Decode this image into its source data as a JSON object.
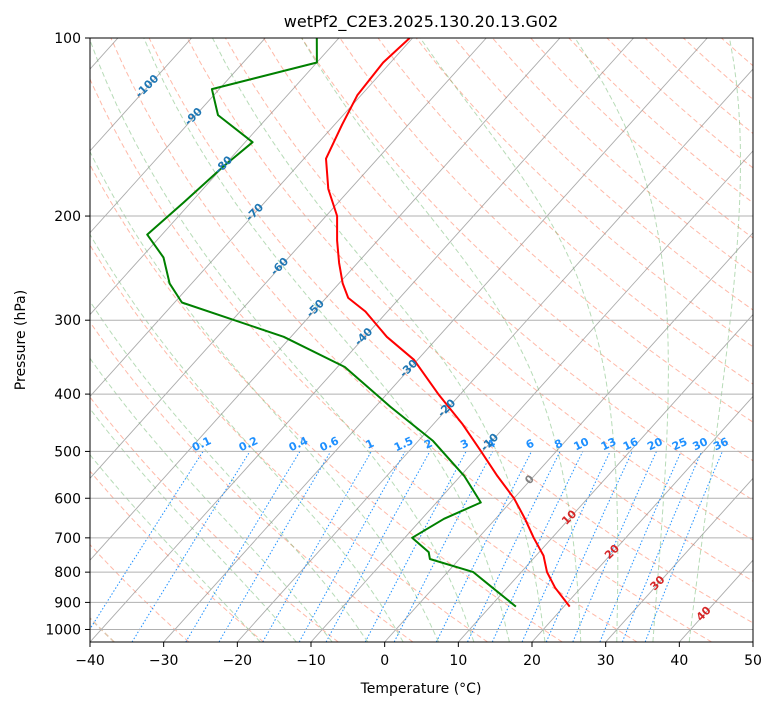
{
  "chart_data": {
    "type": "line",
    "chart_kind": "skew-T log-p diagram",
    "title": "wetPf2_C2E3.2025.130.20.13.G02",
    "xlabel": "Temperature (°C)",
    "ylabel": "Pressure (hPa)",
    "xlim": [
      -40,
      50
    ],
    "ylim": [
      1050,
      100
    ],
    "y_scale": "log",
    "x_ticks": [
      "−40",
      "−30",
      "−20",
      "−10",
      "0",
      "10",
      "20",
      "30",
      "40",
      "50"
    ],
    "y_ticks": [
      100,
      200,
      300,
      400,
      500,
      600,
      700,
      800,
      900,
      1000
    ],
    "grid": true,
    "colors": {
      "temperature": "#ff0000",
      "dewpoint": "#008000",
      "isotherm": "#888888",
      "dry_adiabat": "#ff8060",
      "moist_adiabat": "#60b060",
      "mixing_ratio": "#1e90ff",
      "isotherm_label_blue": "#1f77b4",
      "isotherm_label_red": "#d62728"
    },
    "series": [
      {
        "key": "temperature",
        "points": [
          {
            "p": 100,
            "t": -70.4
          },
          {
            "p": 110,
            "t": -71.0
          },
          {
            "p": 125,
            "t": -70.5
          },
          {
            "p": 140,
            "t": -69.0
          },
          {
            "p": 160,
            "t": -67.0
          },
          {
            "p": 180,
            "t": -63.0
          },
          {
            "p": 200,
            "t": -58.5
          },
          {
            "p": 220,
            "t": -55.5
          },
          {
            "p": 240,
            "t": -52.5
          },
          {
            "p": 260,
            "t": -49.5
          },
          {
            "p": 275,
            "t": -47.0
          },
          {
            "p": 290,
            "t": -43.0
          },
          {
            "p": 320,
            "t": -37.0
          },
          {
            "p": 350,
            "t": -30.5
          },
          {
            "p": 400,
            "t": -23.0
          },
          {
            "p": 450,
            "t": -16.0
          },
          {
            "p": 500,
            "t": -10.2
          },
          {
            "p": 550,
            "t": -5.0
          },
          {
            "p": 600,
            "t": 0.0
          },
          {
            "p": 650,
            "t": 4.0
          },
          {
            "p": 700,
            "t": 7.5
          },
          {
            "p": 750,
            "t": 11.0
          },
          {
            "p": 800,
            "t": 13.5
          },
          {
            "p": 850,
            "t": 16.5
          },
          {
            "p": 915,
            "t": 20.8
          }
        ]
      },
      {
        "key": "dewpoint",
        "points": [
          {
            "p": 100,
            "t": -83.0
          },
          {
            "p": 110,
            "t": -80.0
          },
          {
            "p": 122,
            "t": -91.0
          },
          {
            "p": 135,
            "t": -87.0
          },
          {
            "p": 150,
            "t": -79.0
          },
          {
            "p": 165,
            "t": -80.0
          },
          {
            "p": 190,
            "t": -81.0
          },
          {
            "p": 215,
            "t": -82.0
          },
          {
            "p": 235,
            "t": -77.0
          },
          {
            "p": 260,
            "t": -73.0
          },
          {
            "p": 280,
            "t": -69.0
          },
          {
            "p": 320,
            "t": -51.0
          },
          {
            "p": 360,
            "t": -39.0
          },
          {
            "p": 420,
            "t": -28.0
          },
          {
            "p": 480,
            "t": -18.0
          },
          {
            "p": 550,
            "t": -9.5
          },
          {
            "p": 610,
            "t": -4.0
          },
          {
            "p": 650,
            "t": -7.0
          },
          {
            "p": 700,
            "t": -9.0
          },
          {
            "p": 740,
            "t": -5.0
          },
          {
            "p": 760,
            "t": -4.0
          },
          {
            "p": 800,
            "t": 3.5
          },
          {
            "p": 850,
            "t": 8.0
          },
          {
            "p": 915,
            "t": 13.5
          }
        ]
      }
    ],
    "isotherm_labels": [
      {
        "text": "-100",
        "t": -100,
        "color": "blue"
      },
      {
        "text": "-90",
        "t": -90,
        "color": "blue"
      },
      {
        "text": "-80",
        "t": -80,
        "color": "blue"
      },
      {
        "text": "-70",
        "t": -70,
        "color": "blue"
      },
      {
        "text": "-60",
        "t": -60,
        "color": "blue"
      },
      {
        "text": "-50",
        "t": -50,
        "color": "blue"
      },
      {
        "text": "-40",
        "t": -40,
        "color": "blue"
      },
      {
        "text": "-30",
        "t": -30,
        "color": "blue"
      },
      {
        "text": "-20",
        "t": -20,
        "color": "blue"
      },
      {
        "text": "-10",
        "t": -10,
        "color": "blue"
      },
      {
        "text": "0",
        "t": 0,
        "color": "gray"
      },
      {
        "text": "10",
        "t": 10,
        "color": "red"
      },
      {
        "text": "20",
        "t": 20,
        "color": "red"
      },
      {
        "text": "30",
        "t": 30,
        "color": "red"
      },
      {
        "text": "40",
        "t": 40,
        "color": "red"
      }
    ],
    "mixing_ratio_labels": [
      "0.1",
      "0.2",
      "0.4",
      "0.6",
      "1",
      "1.5",
      "2",
      "3",
      "4",
      "6",
      "8",
      "10",
      "13",
      "16",
      "20",
      "25",
      "30",
      "36"
    ]
  }
}
